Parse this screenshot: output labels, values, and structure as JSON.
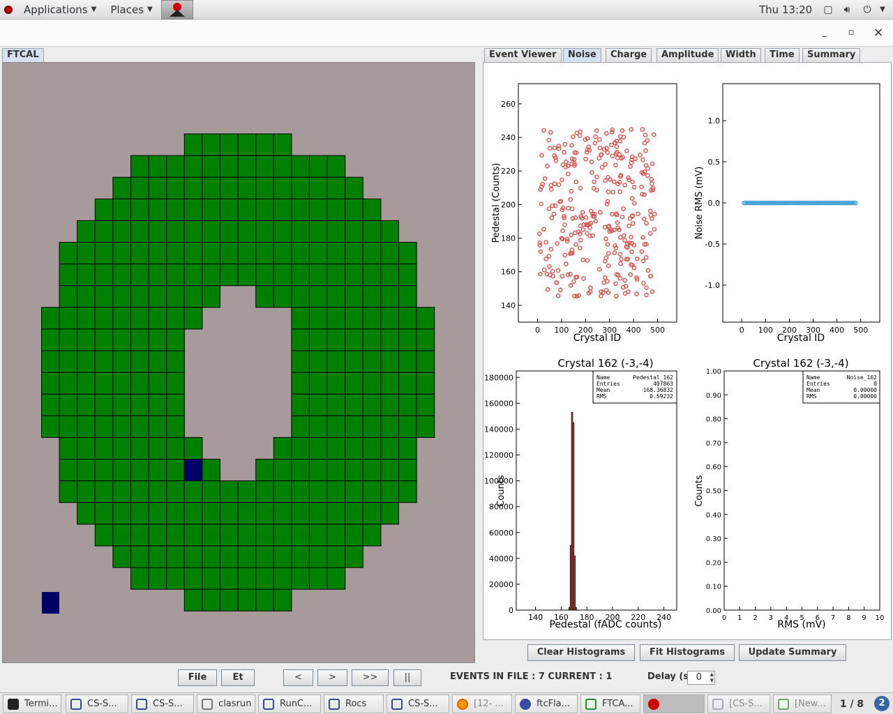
{
  "topbar": {
    "applications": "Applications",
    "places": "Places",
    "clock": "Thu 13:20"
  },
  "window": {
    "minimize": "_",
    "maximize": "▫",
    "close": "×"
  },
  "left_tab": "FTCAL",
  "right_tabs": [
    "Event Viewer",
    "Noise",
    "Charge",
    "Amplitude",
    "Width",
    "Time",
    "Summary"
  ],
  "active_right_tab": "Noise",
  "plots": {
    "p1": {
      "xlabel": "Crystal ID",
      "ylabel": "Pedestal (Counts)",
      "xticks": [
        "0",
        "100",
        "200",
        "300",
        "400",
        "500"
      ],
      "yticks": [
        "140",
        "160",
        "180",
        "200",
        "220",
        "240",
        "260"
      ]
    },
    "p2": {
      "xlabel": "Crystal ID",
      "ylabel": "Noise RMS (mV)",
      "xticks": [
        "0",
        "100",
        "200",
        "300",
        "400",
        "500"
      ],
      "yticks": [
        "-1.0",
        "-0.5",
        "0.0",
        "0.5",
        "1.0"
      ]
    },
    "p3": {
      "title": "Crystal 162 (-3,-4)",
      "xlabel": "Pedestal (fADC counts)",
      "ylabel": "Counts",
      "xticks": [
        "140",
        "160",
        "180",
        "200",
        "220",
        "240"
      ],
      "yticks": [
        "0",
        "20000",
        "40000",
        "60000",
        "80000",
        "100000",
        "120000",
        "140000",
        "160000",
        "180000"
      ],
      "stats": [
        [
          "Name",
          "Pedestal_162"
        ],
        [
          "Entries",
          "407863"
        ],
        [
          "Mean",
          "168.36832"
        ],
        [
          "RMS",
          "0.59232"
        ]
      ]
    },
    "p4": {
      "title": "Crystal 162 (-3,-4)",
      "xlabel": "RMS (mV)",
      "ylabel": "Counts",
      "xticks": [
        "0",
        "1",
        "2",
        "3",
        "4",
        "5",
        "6",
        "7",
        "8",
        "9",
        "10"
      ],
      "yticks": [
        "0.00",
        "0.10",
        "0.20",
        "0.30",
        "0.40",
        "0.50",
        "0.60",
        "0.70",
        "0.80",
        "0.90",
        "1.00"
      ],
      "stats": [
        [
          "Name",
          "Noise_162"
        ],
        [
          "Entries",
          "0"
        ],
        [
          "Mean",
          "0.00000"
        ],
        [
          "RMS",
          "0.00000"
        ]
      ]
    }
  },
  "chart_data": [
    {
      "type": "scatter",
      "xlabel": "Crystal ID",
      "ylabel": "Pedestal (Counts)",
      "xlim": [
        -80,
        580
      ],
      "ylim": [
        130,
        272
      ],
      "series_note_points": 332,
      "color": "#d9534f"
    },
    {
      "type": "scatter",
      "xlabel": "Crystal ID",
      "ylabel": "Noise RMS (mV)",
      "xlim": [
        -80,
        580
      ],
      "ylim": [
        -1.45,
        1.45
      ],
      "x_range": [
        10,
        480
      ],
      "y_value": 0.0,
      "color": "#4aa3d8"
    },
    {
      "type": "bar",
      "title": "Crystal 162 (-3,-4)",
      "xlabel": "Pedestal (fADC counts)",
      "ylabel": "Counts",
      "xlim": [
        125,
        250
      ],
      "ylim": [
        0,
        185000
      ],
      "bins": [
        [
          166,
          2000
        ],
        [
          167,
          50000
        ],
        [
          168,
          153000
        ],
        [
          169,
          145000
        ],
        [
          170,
          42000
        ],
        [
          171,
          2000
        ]
      ],
      "color": "#d9534f"
    },
    {
      "type": "bar",
      "title": "Crystal 162 (-3,-4)",
      "xlabel": "RMS (mV)",
      "ylabel": "Counts",
      "xlim": [
        0,
        10
      ],
      "ylim": [
        0,
        1
      ],
      "bins": []
    }
  ],
  "buttons": {
    "clear": "Clear Histograms",
    "fit": "Fit Histograms",
    "update": "Update Summary",
    "file": "File",
    "et": "Et",
    "prev": "<",
    "next": ">",
    "fast": ">>",
    "pause": "||"
  },
  "status": {
    "events": "EVENTS IN FILE : 7  CURRENT : 1",
    "delay_label": "Delay (sec)",
    "delay_value": "0"
  },
  "taskbar": [
    "Termi...",
    "CS-S...",
    "CS-S...",
    "clasrun",
    "RunC...",
    "Rocs",
    "CS-S...",
    "[12- ...",
    "ftcFla...",
    "FTCA...",
    "",
    "[CS-S...",
    "[New...",
    "1 / 8"
  ],
  "colors": {
    "crystal": "#008000",
    "selected": "#000066",
    "background": "#a69a9a",
    "points": "#d9534f",
    "noise": "#4aa3d8"
  }
}
